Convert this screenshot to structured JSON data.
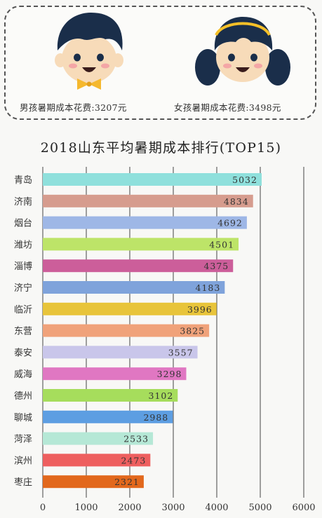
{
  "header": {
    "boy_caption": "男孩暑期成本花费:3207元",
    "girl_caption": "女孩暑期成本花费:3498元"
  },
  "colors": {
    "boy_hair": "#1a2e4a",
    "skin": "#f7dbb9",
    "bow_tie": "#f5b82e",
    "headband": "#f5c028"
  },
  "chart_data": {
    "type": "bar",
    "orientation": "horizontal",
    "title": "2018山东平均暑期成本排行(TOP15)",
    "categories": [
      "青岛",
      "济南",
      "烟台",
      "潍坊",
      "淄博",
      "济宁",
      "临沂",
      "东营",
      "泰安",
      "威海",
      "德州",
      "聊城",
      "菏泽",
      "滨州",
      "枣庄"
    ],
    "values": [
      5032,
      4834,
      4692,
      4501,
      4375,
      4183,
      3996,
      3825,
      3557,
      3298,
      3102,
      2988,
      2533,
      2473,
      2321
    ],
    "bar_colors": [
      "#8fe0dc",
      "#d69c8e",
      "#9eb7e6",
      "#bde468",
      "#cc5e9a",
      "#7fa3db",
      "#e8c43a",
      "#f0a27a",
      "#c9c6ea",
      "#e077c2",
      "#a6dd5c",
      "#5d9ee2",
      "#b5e8d6",
      "#ee5f5f",
      "#e2681c"
    ],
    "xlim": [
      0,
      6000
    ],
    "xticks": [
      0,
      1000,
      2000,
      3000,
      4000,
      5000,
      6000
    ],
    "grid": true
  }
}
